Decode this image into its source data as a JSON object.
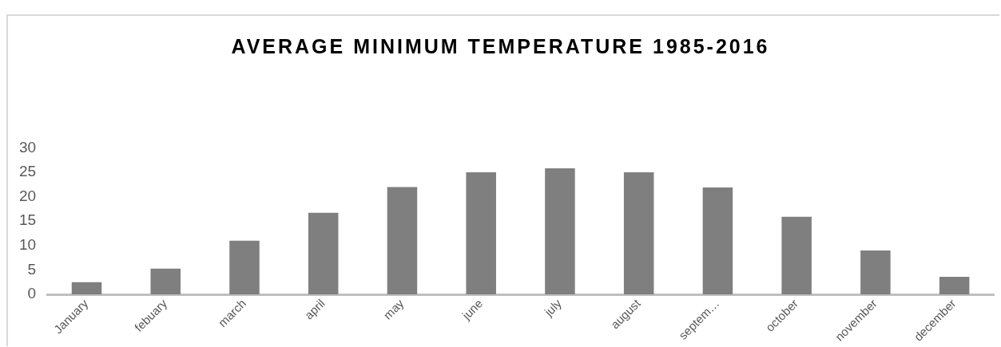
{
  "chart_data": {
    "type": "bar",
    "title": "AVERAGE MINIMUM TEMPERATURE 1985-2016",
    "categories": [
      "January",
      "febuary",
      "march",
      "april",
      "may",
      "june",
      "july",
      "august",
      "septem…",
      "october",
      "november",
      "december"
    ],
    "values": [
      2.5,
      5.3,
      11,
      16.7,
      22,
      25,
      25.8,
      25,
      21.9,
      15.9,
      9,
      3.6
    ],
    "color": "#7f7f7f",
    "ylim": [
      0,
      30
    ],
    "yticks": [
      0,
      5,
      10,
      15,
      20,
      25,
      30
    ],
    "grid": false,
    "legend": false
  }
}
